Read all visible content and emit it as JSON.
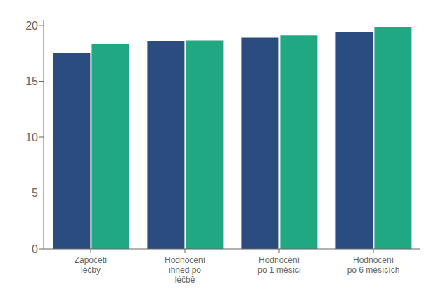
{
  "chart_data": {
    "type": "bar",
    "categories": [
      "Započetí\nléčby",
      "Hodnocení\nihned po\nléčbě",
      "Hodnocení\npo 1 měsíci",
      "Hodnocení\npo 6 měsících"
    ],
    "series": [
      {
        "color": "#2B4C7E",
        "values": [
          17.5,
          18.6,
          18.9,
          19.4
        ]
      },
      {
        "color": "#1FA882",
        "values": [
          18.35,
          18.65,
          19.1,
          19.85
        ]
      }
    ],
    "ylim": [
      0,
      20.5
    ],
    "yticks": [
      0,
      5,
      10,
      15,
      20
    ],
    "grid": false
  }
}
